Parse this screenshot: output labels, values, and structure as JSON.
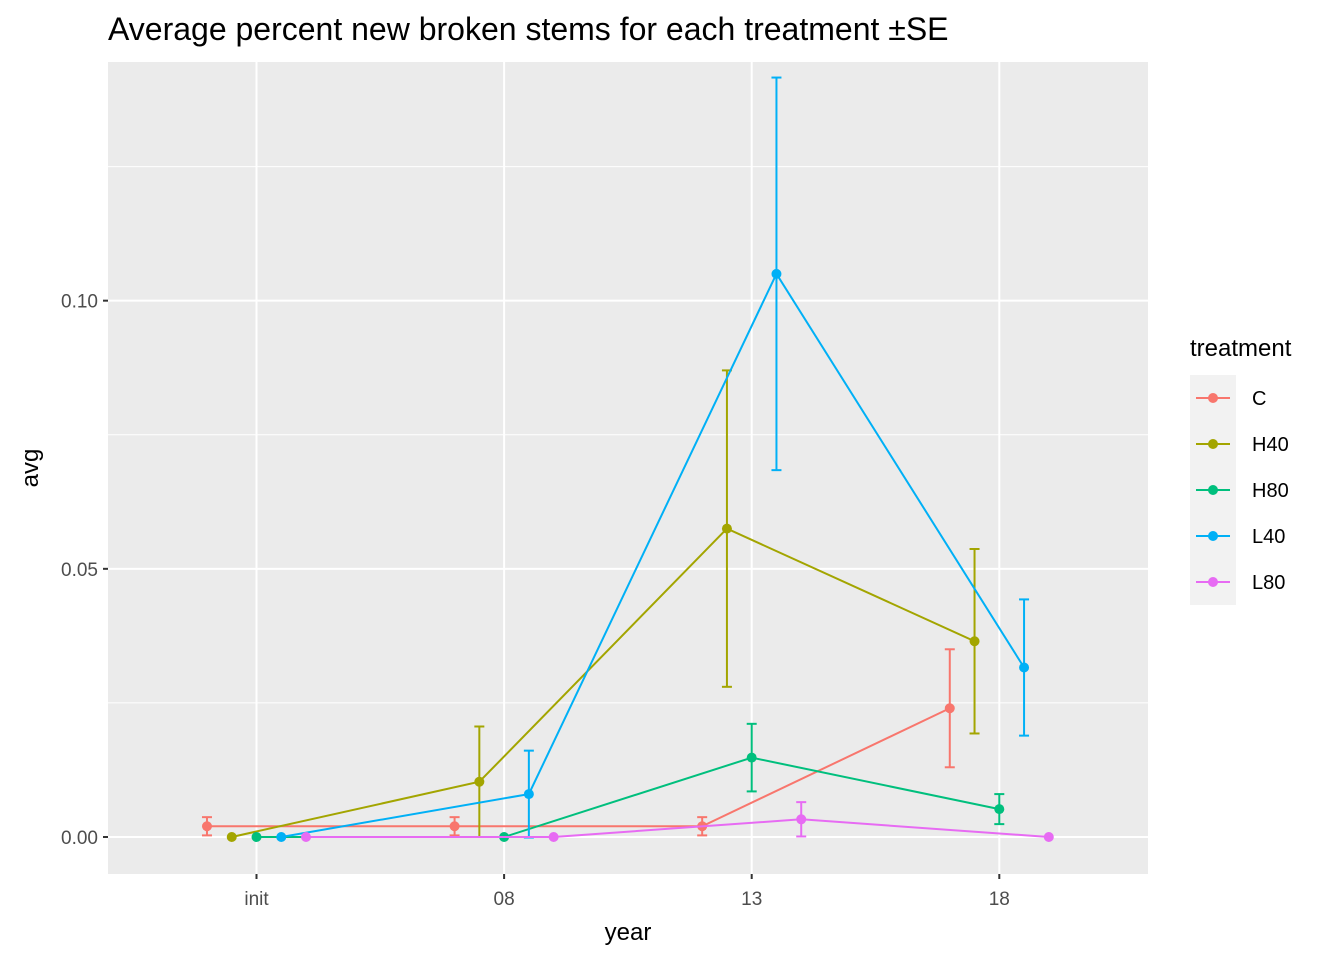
{
  "chart_data": {
    "type": "line",
    "title": "Average percent new broken stems for each treatment ±SE",
    "xlabel": "year",
    "ylabel": "avg",
    "categories": [
      "init",
      "08",
      "13",
      "18"
    ],
    "ylim": [
      -0.0069,
      0.1445
    ],
    "yticks": [
      0.0,
      0.05,
      0.1
    ],
    "ytick_labels": [
      "0.00",
      "0.05",
      "0.10"
    ],
    "grid": true,
    "legend": {
      "title": "treatment",
      "placement": "right"
    },
    "error_bars": "±SE",
    "series": [
      {
        "name": "C",
        "color": "#F8766D",
        "values": [
          0.002,
          0.002,
          0.002,
          0.024
        ],
        "se": [
          0.0017,
          0.0017,
          0.0017,
          0.011
        ]
      },
      {
        "name": "H40",
        "color": "#A3A500",
        "values": [
          0.0,
          0.0103,
          0.0575,
          0.0365
        ],
        "se": [
          0.0,
          0.0103,
          0.0295,
          0.0172
        ]
      },
      {
        "name": "H80",
        "color": "#00BF7D",
        "values": [
          0.0,
          0.0,
          0.0148,
          0.0052
        ],
        "se": [
          0.0,
          0.0,
          0.0063,
          0.0028
        ]
      },
      {
        "name": "L40",
        "color": "#00B0F6",
        "values": [
          0.0,
          0.008,
          0.105,
          0.0316
        ],
        "se": [
          0.0,
          0.0081,
          0.0366,
          0.0127
        ]
      },
      {
        "name": "L80",
        "color": "#E76BF3",
        "values": [
          0.0,
          0.0,
          0.0033,
          0.0
        ],
        "se": [
          0.0,
          0.0,
          0.0032,
          0.0
        ]
      }
    ]
  }
}
